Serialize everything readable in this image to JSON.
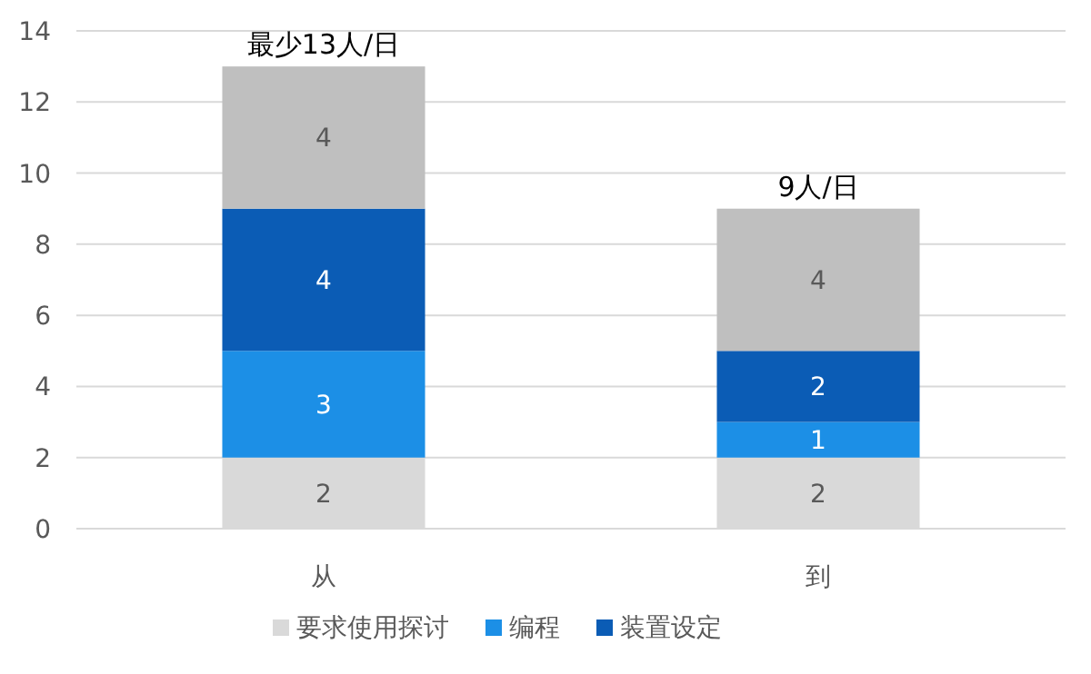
{
  "chart_data": {
    "type": "bar",
    "stacked": true,
    "categories": [
      "从",
      "到"
    ],
    "series": [
      {
        "name": "要求使用探讨",
        "color": "#d9d9d9",
        "values": [
          2,
          2
        ]
      },
      {
        "name": "编程",
        "color": "#1c8fe6",
        "values": [
          3,
          1
        ]
      },
      {
        "name": "装置设定",
        "color": "#0b5cb5",
        "values": [
          4,
          2
        ]
      },
      {
        "color": "#bfbfbf",
        "values": [
          4,
          4
        ]
      }
    ],
    "totals": [
      "最少13人/日",
      "9人/日"
    ],
    "data_labels": true,
    "ylim": [
      0,
      14
    ],
    "yticks": [
      0,
      2,
      4,
      6,
      8,
      10,
      12,
      14
    ],
    "grid": "y",
    "legend": "bottom"
  }
}
